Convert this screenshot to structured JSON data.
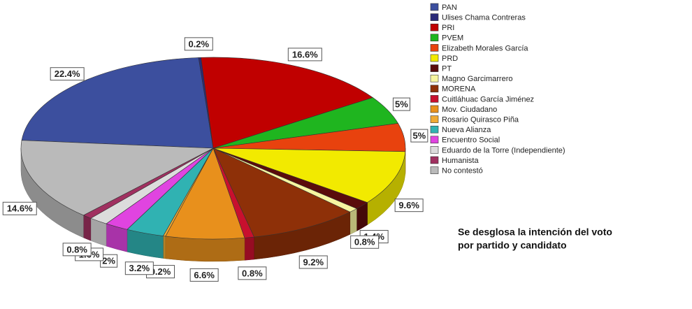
{
  "chart_data": {
    "type": "pie",
    "categories": [
      "PAN",
      "Ulises Chama Contreras",
      "PRI",
      "PVEM",
      "Elizabeth Morales García",
      "PRD",
      "PT",
      "Magno Garcimarrero",
      "MORENA",
      "Cuitláhuac García Jiménez",
      "Mov. Ciudadano",
      "Rosario Quirasco Piña",
      "Nueva Alianza",
      "Encuentro Social",
      "Eduardo de la Torre (Independiente)",
      "Humanista",
      "No contestó"
    ],
    "values": [
      22.4,
      0.2,
      16.6,
      5,
      5,
      9.6,
      1.4,
      0.8,
      9.2,
      0.8,
      6.6,
      0.2,
      3.2,
      2,
      1.6,
      0.8,
      14.6
    ],
    "value_labels": [
      "22.4%",
      "0.2%",
      "16.6%",
      "5%",
      "5%",
      "9.6%",
      "1.4%",
      "0.8%",
      "9.2%",
      "0.8%",
      "6.6%",
      "0.2%",
      "3.2%",
      "2%",
      "1.6%",
      "0.8%",
      "14.6%"
    ],
    "colors": [
      "#3c4f9e",
      "#2a2a78",
      "#c00000",
      "#1fb51f",
      "#e8420e",
      "#f2ea00",
      "#5a0c0c",
      "#f7f5a0",
      "#8e3008",
      "#c8102e",
      "#e8901c",
      "#f0aa34",
      "#30b2b2",
      "#e044e0",
      "#dcdcdc",
      "#a03060",
      "#bababa"
    ],
    "legend": "top-right",
    "annotation": [
      "Se desglosa la intención del voto",
      "por partido y candidato"
    ]
  }
}
